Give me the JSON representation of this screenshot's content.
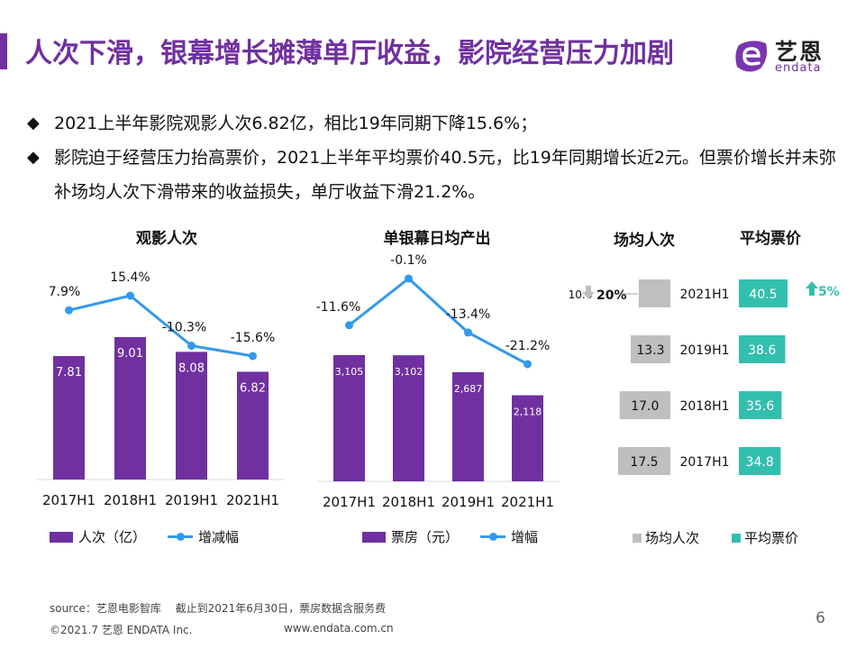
{
  "header": {
    "title": "人次下滑，银幕增长摊薄单厅收益，影院经营压力加剧",
    "logo_cn": "艺恩",
    "logo_en": "endata"
  },
  "bullets": [
    {
      "icon": "diamond-bullet-icon",
      "text": "2021上半年影院观影人次6.82亿，相比19年同期下降15.6%；"
    },
    {
      "icon": "diamond-bullet-icon",
      "text": "影院迫于经营压力抬高票价，2021上半年平均票价40.5元，比19年同期增长近2元。但票价增长并未弥补场均人次下滑带来的收益损失，单厅收益下滑21.2%。"
    }
  ],
  "bullet_glyph": "◆",
  "colors": {
    "purple": "#7030a0",
    "blue": "#3399ee",
    "teal": "#33bfae",
    "gray": "#bfbfbf"
  },
  "chart_data": [
    {
      "type": "bar",
      "title": "观影人次",
      "categories": [
        "2017H1",
        "2018H1",
        "2019H1",
        "2021H1"
      ],
      "series": [
        {
          "name": "人次（亿）",
          "kind": "bar",
          "values": [
            7.81,
            9.01,
            8.08,
            6.82
          ],
          "labels": [
            "7.81",
            "9.01",
            "8.08",
            "6.82"
          ]
        },
        {
          "name": "增减幅",
          "kind": "line",
          "values": [
            7.9,
            15.4,
            -10.3,
            -15.6
          ],
          "labels": [
            "7.9%",
            "15.4%",
            "-10.3%",
            "-15.6%"
          ]
        }
      ],
      "legend": [
        "人次（亿）",
        "增减幅"
      ],
      "legend_position": "bottom",
      "grid": false
    },
    {
      "type": "bar",
      "title": "单银幕日均产出",
      "categories": [
        "2017H1",
        "2018H1",
        "2019H1",
        "2021H1"
      ],
      "series": [
        {
          "name": "票房（元）",
          "kind": "bar",
          "values": [
            3105,
            3102,
            2687,
            2118
          ],
          "labels": [
            "3,105",
            "3,102",
            "2,687",
            "2,118"
          ]
        },
        {
          "name": "增幅",
          "kind": "line",
          "values": [
            -11.6,
            -0.1,
            -13.4,
            -21.2
          ],
          "labels": [
            "-11.6%",
            "-0.1%",
            "-13.4%",
            "-21.2%"
          ]
        }
      ],
      "legend": [
        "票房（元）",
        "增幅"
      ],
      "legend_position": "bottom",
      "grid": false
    },
    {
      "type": "bar",
      "orientation": "horizontal-butterfly",
      "titles": [
        "场均人次",
        "平均票价"
      ],
      "categories": [
        "2021H1",
        "2019H1",
        "2018H1",
        "2017H1"
      ],
      "series": [
        {
          "name": "场均人次",
          "values": [
            10.6,
            13.3,
            17.0,
            17.5
          ],
          "labels": [
            "10.6",
            "13.3",
            "17.0",
            "17.5"
          ]
        },
        {
          "name": "平均票价",
          "values": [
            40.5,
            38.6,
            35.6,
            34.8
          ],
          "labels": [
            "40.5",
            "38.6",
            "35.6",
            "34.8"
          ]
        }
      ],
      "annotations": [
        {
          "series": "场均人次",
          "category": "2021H1",
          "text": "20%",
          "direction": "down"
        },
        {
          "series": "平均票价",
          "category": "2021H1",
          "text": "5%",
          "direction": "up"
        }
      ],
      "legend": [
        "场均人次",
        "平均票价"
      ],
      "legend_position": "bottom"
    }
  ],
  "footer": {
    "source": "source：艺恩电影智库　 截止到2021年6月30日，票房数据含服务费",
    "copyright": "©2021.7 艺恩 ENDATA Inc.",
    "website": "www.endata.com.cn",
    "page_number": "6"
  }
}
